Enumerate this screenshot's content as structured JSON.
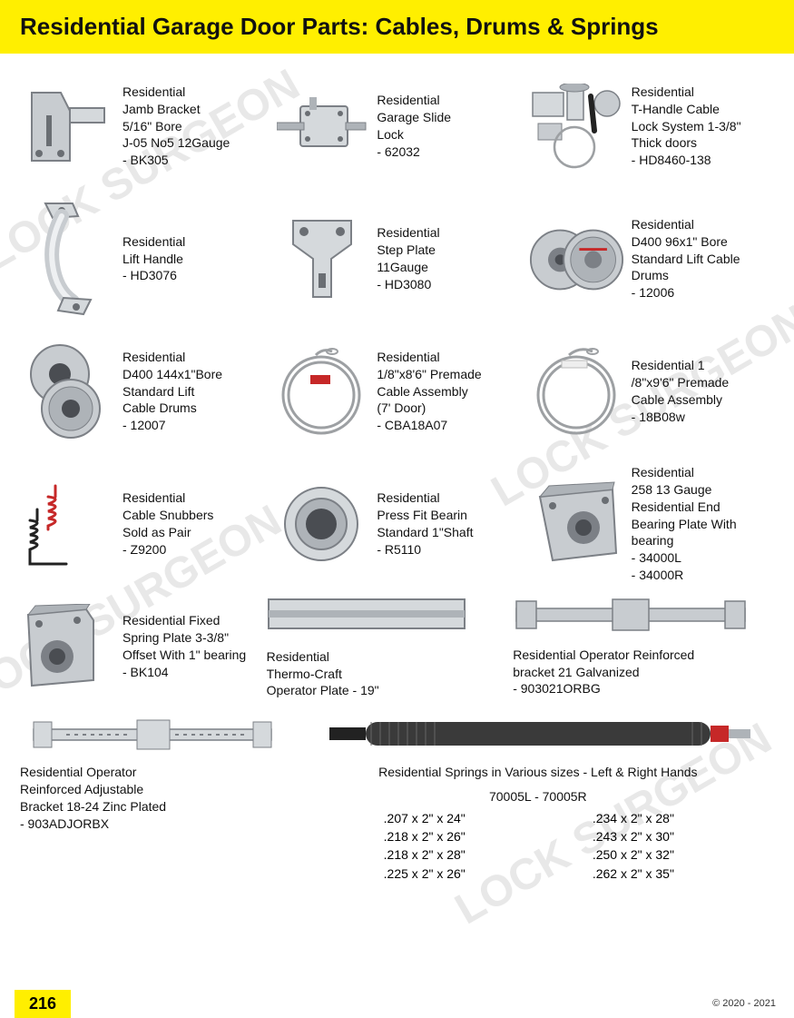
{
  "colors": {
    "header_bg": "#ffef00",
    "text": "#111111",
    "page_bg": "#ffffff",
    "watermark": "#e8e8e8",
    "metal_light": "#d5d9dc",
    "metal_mid": "#aeb3b8",
    "metal_dark": "#7c8086",
    "cable": "#9da0a3",
    "spring_red": "#c62828",
    "spring_black": "#222222"
  },
  "header": {
    "title": "Residential Garage Door Parts: Cables, Drums & Springs"
  },
  "watermark_text": "LOCK SURGEON",
  "products": {
    "r1c1": {
      "name": "jamb-bracket",
      "label": "Residential\nJamb Bracket\n5/16\" Bore\nJ-05 No5 12Gauge\n- BK305"
    },
    "r1c2": {
      "name": "slide-lock",
      "label": "Residential\nGarage Slide\nLock\n- 62032"
    },
    "r1c3": {
      "name": "t-handle-cable-lock",
      "label": "Residential\nT-Handle Cable\nLock System 1-3/8\"\nThick doors\n- HD8460-138"
    },
    "r2c1": {
      "name": "lift-handle",
      "label": "Residential\nLift Handle\n- HD3076"
    },
    "r2c2": {
      "name": "step-plate",
      "label": "Residential\nStep Plate\n11Gauge\n- HD3080"
    },
    "r2c3": {
      "name": "cable-drums-96",
      "label": "Residential\nD400 96x1\" Bore\nStandard Lift Cable\nDrums\n- 12006"
    },
    "r3c1": {
      "name": "cable-drums-144",
      "label": "Residential\nD400 144x1\"Bore\nStandard Lift\nCable Drums\n- 12007"
    },
    "r3c2": {
      "name": "cable-assembly-7ft",
      "label": "Residential\n1/8\"x8'6\" Premade\nCable Assembly\n(7' Door)\n- CBA18A07"
    },
    "r3c3": {
      "name": "cable-assembly-9-6",
      "label": "Residential 1\n/8\"x9'6\" Premade\nCable Assembly\n- 18B08w"
    },
    "r4c1": {
      "name": "cable-snubbers",
      "label": "Residential\nCable Snubbers\nSold as Pair\n- Z9200"
    },
    "r4c2": {
      "name": "press-fit-bearing",
      "label": "Residential\nPress Fit Bearin\nStandard 1\"Shaft\n- R5110"
    },
    "r4c3": {
      "name": "end-bearing-plate",
      "label": "Residential\n258 13 Gauge\nResidential End\nBearing Plate With\nbearing\n- 34000L\n- 34000R"
    },
    "r5c1": {
      "name": "fixed-spring-plate",
      "label": "Residential Fixed\nSpring Plate 3-3/8\"\nOffset With 1\" bearing\n- BK104"
    },
    "r5c2": {
      "name": "thermo-craft-plate",
      "label": "Residential\nThermo-Craft\nOperator Plate - 19\""
    },
    "r5c3": {
      "name": "reinforced-bracket-21",
      "label": "Residential Operator Reinforced\nbracket 21 Galvanized\n- 903021ORBG"
    },
    "r6c1": {
      "name": "reinforced-adjustable-bracket",
      "label": "Residential Operator\nReinforced Adjustable\nBracket 18-24 Zinc Plated\n- 903ADJORBX"
    },
    "r6c2": {
      "name": "torsion-springs",
      "title": "Residential Springs in Various sizes - Left & Right Hands",
      "models": "70005L  -  70005R",
      "sizes_left": [
        ".207 x 2\" x 24\"",
        ".218 x 2\" x 26\"",
        ".218 x 2\" x 28\"",
        ".225 x 2\" x 26\""
      ],
      "sizes_right": [
        ".234 x 2\" x 28\"",
        ".243 x 2\" x 30\"",
        ".250 x 2\" x 32\"",
        ".262 x 2\" x 35\""
      ]
    }
  },
  "footer": {
    "page": "216",
    "copyright": "© 2020 - 2021"
  }
}
